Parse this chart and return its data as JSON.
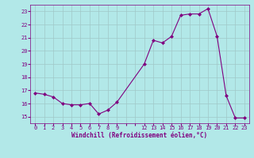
{
  "x": [
    0,
    1,
    2,
    3,
    4,
    5,
    6,
    7,
    8,
    9,
    12,
    13,
    14,
    15,
    16,
    17,
    18,
    19,
    20,
    21,
    22,
    23
  ],
  "y": [
    16.8,
    16.7,
    16.5,
    16.0,
    15.9,
    15.9,
    16.0,
    15.2,
    15.5,
    16.1,
    19.0,
    20.8,
    20.6,
    21.1,
    22.7,
    22.8,
    22.8,
    23.2,
    21.1,
    16.6,
    14.9,
    14.9
  ],
  "line_color": "#800080",
  "marker": "D",
  "marker_size": 2,
  "bg_color": "#b2e8e8",
  "grid_color": "#a0c8c8",
  "xlabel": "Windchill (Refroidissement éolien,°C)",
  "xlabel_color": "#800080",
  "tick_color": "#800080",
  "ylim": [
    14.5,
    23.5
  ],
  "yticks": [
    15,
    16,
    17,
    18,
    19,
    20,
    21,
    22,
    23
  ],
  "xlim": [
    -0.5,
    23.5
  ],
  "xtick_positions": [
    0,
    1,
    2,
    3,
    4,
    5,
    6,
    7,
    8,
    9,
    10,
    11,
    12,
    13,
    14,
    15,
    16,
    17,
    18,
    19,
    20,
    21,
    22,
    23
  ],
  "xtick_labels": [
    "0",
    "1",
    "2",
    "3",
    "4",
    "5",
    "6",
    "7",
    "8",
    "9",
    "",
    "",
    "12",
    "13",
    "14",
    "15",
    "16",
    "17",
    "18",
    "19",
    "20",
    "21",
    "22",
    "23"
  ]
}
